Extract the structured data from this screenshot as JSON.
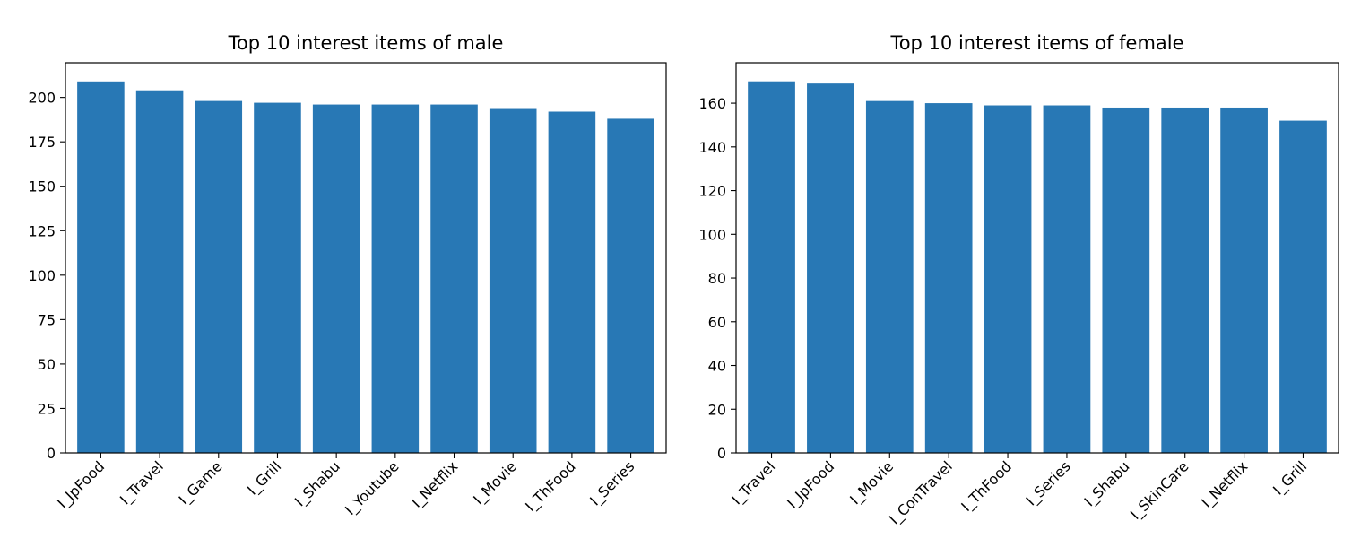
{
  "chart_data": [
    {
      "type": "bar",
      "title": "Top 10 interest items of male",
      "xlabel": "",
      "ylabel": "",
      "categories": [
        "I_JpFood",
        "I_Travel",
        "I_Game",
        "I_Grill",
        "I_Shabu",
        "I_Youtube",
        "I_Netflix",
        "I_Movie",
        "I_ThFood",
        "I_Series"
      ],
      "values": [
        209,
        204,
        198,
        197,
        196,
        196,
        196,
        194,
        192,
        188
      ],
      "ylim": [
        0,
        219.5
      ],
      "yticks": [
        0,
        25,
        50,
        75,
        100,
        125,
        150,
        175,
        200
      ],
      "grid": false,
      "bar_color": "#2878b5"
    },
    {
      "type": "bar",
      "title": "Top 10 interest items of female",
      "xlabel": "",
      "ylabel": "",
      "categories": [
        "I_Travel",
        "I_JpFood",
        "I_Movie",
        "I_ConTravel",
        "I_ThFood",
        "I_Series",
        "I_Shabu",
        "I_SkinCare",
        "I_Netflix",
        "I_Grill"
      ],
      "values": [
        170,
        169,
        161,
        160,
        159,
        159,
        158,
        158,
        158,
        152
      ],
      "ylim": [
        0,
        178.5
      ],
      "yticks": [
        0,
        20,
        40,
        60,
        80,
        100,
        120,
        140,
        160
      ],
      "grid": false,
      "bar_color": "#2878b5"
    }
  ]
}
